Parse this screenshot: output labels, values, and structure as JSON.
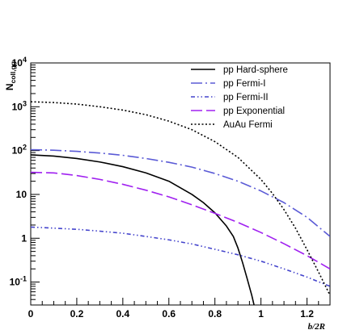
{
  "chart_data": {
    "type": "line",
    "title": "",
    "xlabel": "b/2R",
    "ylabel_main": "N",
    "ylabel_sub": "coll,gg",
    "x_scale": "linear",
    "y_scale": "log",
    "xlim": [
      0,
      1.3
    ],
    "ylim": [
      0.03,
      10000
    ],
    "grid": false,
    "legend_position": "top-right",
    "x_ticks": [
      {
        "value": 0,
        "label": "0"
      },
      {
        "value": 0.2,
        "label": "0.2"
      },
      {
        "value": 0.4,
        "label": "0.4"
      },
      {
        "value": 0.6,
        "label": "0.6"
      },
      {
        "value": 0.8,
        "label": "0.8"
      },
      {
        "value": 1.0,
        "label": "1"
      },
      {
        "value": 1.2,
        "label": "1.2"
      }
    ],
    "y_ticks": [
      {
        "value": 0.1,
        "base": "10",
        "exp": "-1"
      },
      {
        "value": 1,
        "base": "1",
        "exp": ""
      },
      {
        "value": 10,
        "base": "10",
        "exp": ""
      },
      {
        "value": 100,
        "base": "10",
        "exp": "2"
      },
      {
        "value": 1000,
        "base": "10",
        "exp": "3"
      },
      {
        "value": 10000,
        "base": "10",
        "exp": "4"
      }
    ],
    "series": [
      {
        "name": "pp Hard-sphere",
        "color": "#000000",
        "dash": "solid",
        "x": [
          0,
          0.1,
          0.2,
          0.3,
          0.4,
          0.5,
          0.6,
          0.7,
          0.75,
          0.8,
          0.85,
          0.88,
          0.9,
          0.92,
          0.94,
          0.96,
          0.97
        ],
        "y": [
          80,
          75,
          66,
          55,
          43,
          31,
          20,
          10,
          6.5,
          3.8,
          1.9,
          1.1,
          0.6,
          0.28,
          0.12,
          0.05,
          0.03
        ]
      },
      {
        "name": "pp Fermi-I",
        "color": "#5b5bd6",
        "dash": "dashdot",
        "x": [
          0,
          0.1,
          0.2,
          0.3,
          0.4,
          0.5,
          0.6,
          0.7,
          0.8,
          0.9,
          1.0,
          1.1,
          1.2,
          1.3
        ],
        "y": [
          105,
          102,
          96,
          88,
          78,
          66,
          54,
          42,
          30,
          20,
          12,
          6.5,
          3,
          1.1
        ]
      },
      {
        "name": "pp Fermi-II",
        "color": "#4444cc",
        "dash": "dashdotdot",
        "x": [
          0,
          0.1,
          0.2,
          0.3,
          0.4,
          0.5,
          0.6,
          0.7,
          0.8,
          0.9,
          1.0,
          1.1,
          1.2,
          1.3
        ],
        "y": [
          1.8,
          1.7,
          1.6,
          1.45,
          1.3,
          1.1,
          0.92,
          0.74,
          0.56,
          0.42,
          0.3,
          0.2,
          0.13,
          0.08
        ]
      },
      {
        "name": "pp Exponential",
        "color": "#a020f0",
        "dash": "longdash",
        "x": [
          0,
          0.1,
          0.2,
          0.3,
          0.4,
          0.5,
          0.6,
          0.7,
          0.8,
          0.9,
          1.0,
          1.1,
          1.2,
          1.3
        ],
        "y": [
          32,
          31,
          27,
          22,
          17,
          12.5,
          8.8,
          5.8,
          3.7,
          2.3,
          1.35,
          0.75,
          0.4,
          0.2
        ]
      },
      {
        "name": "AuAu Fermi",
        "color": "#000000",
        "dash": "dotted",
        "x": [
          0,
          0.1,
          0.2,
          0.3,
          0.4,
          0.5,
          0.6,
          0.7,
          0.8,
          0.9,
          1.0,
          1.05,
          1.1,
          1.15,
          1.2,
          1.25,
          1.3
        ],
        "y": [
          1300,
          1250,
          1150,
          1000,
          840,
          660,
          470,
          300,
          160,
          70,
          22,
          10.5,
          4.5,
          1.7,
          0.55,
          0.17,
          0.05
        ]
      }
    ]
  }
}
